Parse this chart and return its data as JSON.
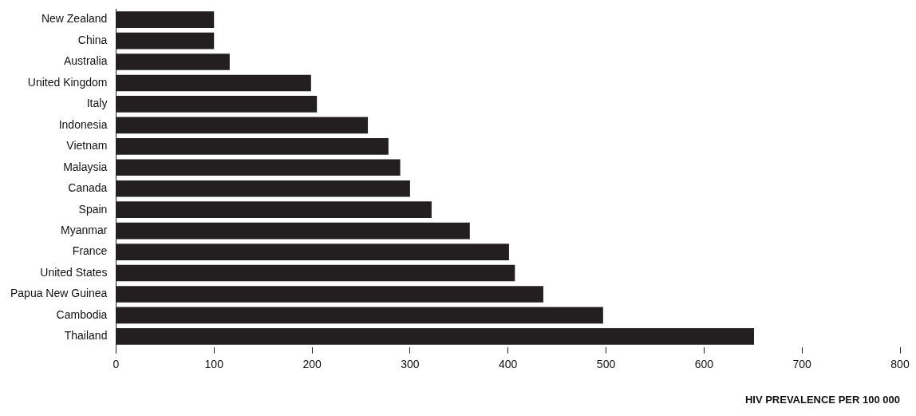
{
  "chart_data": {
    "type": "bar",
    "orientation": "horizontal",
    "xlabel": "HIV PREVALENCE PER 100 000",
    "categories": [
      "New Zealand",
      "China",
      "Australia",
      "United Kingdom",
      "Italy",
      "Indonesia",
      "Vietnam",
      "Malaysia",
      "Canada",
      "Spain",
      "Myanmar",
      "France",
      "United States",
      "Papua New Guinea",
      "Cambodia",
      "Thailand"
    ],
    "values": [
      100,
      100,
      116,
      199,
      205,
      257,
      278,
      290,
      300,
      322,
      361,
      401,
      407,
      436,
      497,
      651
    ],
    "color": "#231f20",
    "xlim": [
      0,
      800
    ],
    "xticks": [
      0,
      100,
      200,
      300,
      400,
      500,
      600,
      700,
      800
    ],
    "grid": false,
    "legend": false
  }
}
